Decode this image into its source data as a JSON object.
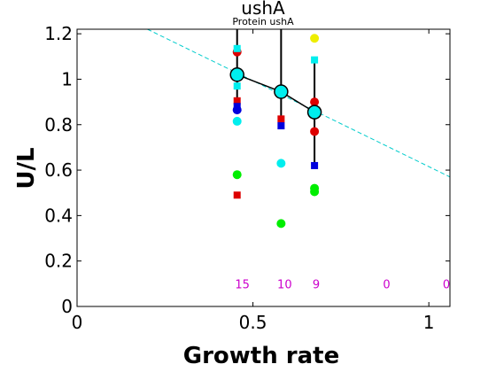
{
  "chart_data": {
    "type": "scatter",
    "title": "ushA",
    "subtitle": "Protein ushA",
    "xlabel": "Growth rate",
    "ylabel": "U/L",
    "xlim": [
      0,
      1.06
    ],
    "ylim": [
      0,
      1.22
    ],
    "x_ticks": [
      0,
      0.5,
      1
    ],
    "x_tick_labels": [
      "0",
      "0.5",
      "1"
    ],
    "y_ticks": [
      0,
      0.2,
      0.4,
      0.6,
      0.8,
      1,
      1.2
    ],
    "y_tick_labels": [
      "0",
      "0.2",
      "0.4",
      "0.6",
      "0.8",
      "1",
      "1.2"
    ],
    "grid": false,
    "colors": {
      "red": "#dd0000",
      "blue": "#0000dd",
      "cyan": "#00eeee",
      "green": "#00ee00",
      "yellow": "#eeee00",
      "count": "#cc00cc",
      "fit": "#00cccc"
    },
    "points": [
      {
        "x": 0.455,
        "y": 1.12,
        "shape": "circle",
        "color": "red"
      },
      {
        "x": 0.455,
        "y": 1.135,
        "shape": "square",
        "color": "cyan"
      },
      {
        "x": 0.455,
        "y": 0.97,
        "shape": "square",
        "color": "cyan"
      },
      {
        "x": 0.455,
        "y": 0.905,
        "shape": "square",
        "color": "red"
      },
      {
        "x": 0.455,
        "y": 0.88,
        "shape": "square",
        "color": "blue"
      },
      {
        "x": 0.455,
        "y": 0.865,
        "shape": "circle",
        "color": "blue"
      },
      {
        "x": 0.455,
        "y": 0.815,
        "shape": "circle",
        "color": "cyan"
      },
      {
        "x": 0.455,
        "y": 0.58,
        "shape": "circle",
        "color": "green"
      },
      {
        "x": 0.455,
        "y": 0.49,
        "shape": "square",
        "color": "red"
      },
      {
        "x": 0.58,
        "y": 0.825,
        "shape": "square",
        "color": "red"
      },
      {
        "x": 0.58,
        "y": 0.795,
        "shape": "square",
        "color": "blue"
      },
      {
        "x": 0.58,
        "y": 0.63,
        "shape": "circle",
        "color": "cyan"
      },
      {
        "x": 0.58,
        "y": 0.365,
        "shape": "circle",
        "color": "green"
      },
      {
        "x": 0.675,
        "y": 1.18,
        "shape": "circle",
        "color": "yellow"
      },
      {
        "x": 0.675,
        "y": 1.085,
        "shape": "square",
        "color": "cyan"
      },
      {
        "x": 0.675,
        "y": 0.9,
        "shape": "circle",
        "color": "red"
      },
      {
        "x": 0.675,
        "y": 0.86,
        "shape": "circle",
        "color": "red"
      },
      {
        "x": 0.675,
        "y": 0.77,
        "shape": "circle",
        "color": "red"
      },
      {
        "x": 0.675,
        "y": 0.62,
        "shape": "square",
        "color": "blue"
      },
      {
        "x": 0.675,
        "y": 0.52,
        "shape": "circle",
        "color": "green"
      },
      {
        "x": 0.675,
        "y": 0.505,
        "shape": "circle",
        "color": "green"
      }
    ],
    "means": [
      {
        "x": 0.455,
        "y": 1.02,
        "err_low": 0.88,
        "err_high": 1.22
      },
      {
        "x": 0.58,
        "y": 0.945,
        "err_low": 0.8,
        "err_high": 1.22
      },
      {
        "x": 0.675,
        "y": 0.855,
        "err_low": 0.62,
        "err_high": 1.085
      }
    ],
    "fit_line": {
      "x": [
        0.2,
        1.06
      ],
      "y": [
        1.22,
        0.57
      ],
      "style": "dashed"
    },
    "counts": [
      {
        "x": 0.47,
        "label": "15"
      },
      {
        "x": 0.59,
        "label": "10"
      },
      {
        "x": 0.68,
        "label": "9"
      },
      {
        "x": 0.88,
        "label": "0"
      },
      {
        "x": 1.05,
        "label": "0"
      }
    ],
    "counts_y": 0.1
  }
}
